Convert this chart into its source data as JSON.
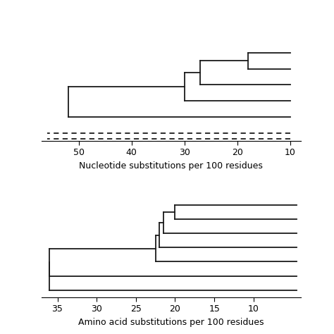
{
  "top": {
    "xlabel": "Nucleotide substitutions per 100 residues",
    "xlim": [
      57,
      8
    ],
    "xticks": [
      50,
      40,
      30,
      20,
      10
    ],
    "ylim": [
      0.5,
      6.8
    ]
  },
  "bottom": {
    "xlabel": "Amino acid substitutions per 100 residues",
    "xlim": [
      37,
      4
    ],
    "xticks": [
      35,
      30,
      25,
      20,
      15,
      10
    ],
    "ylim": [
      0.5,
      7.6
    ]
  },
  "bg_color": "#ffffff",
  "line_color": "#1a1a1a",
  "lw": 1.3,
  "font_size": 9
}
